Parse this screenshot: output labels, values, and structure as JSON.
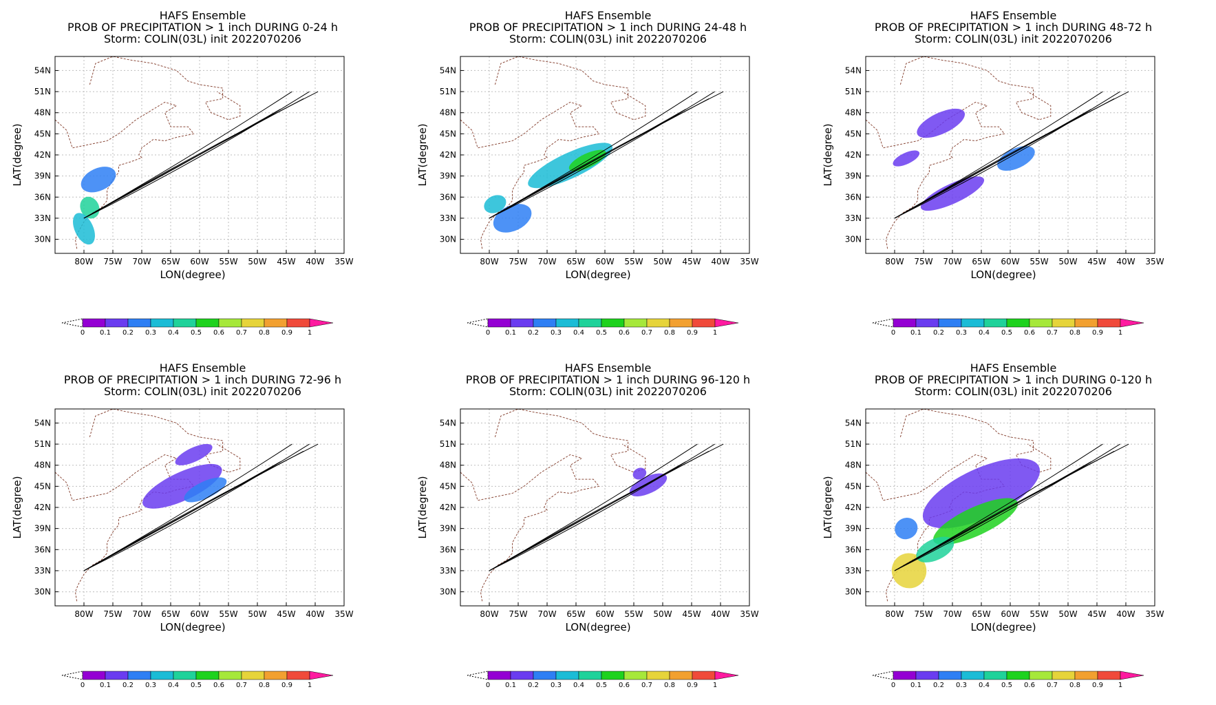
{
  "figure": {
    "lat_ticks": [
      "54N",
      "51N",
      "48N",
      "45N",
      "42N",
      "39N",
      "36N",
      "33N",
      "30N"
    ],
    "lon_ticks": [
      "80W",
      "75W",
      "70W",
      "65W",
      "60W",
      "55W",
      "50W",
      "45W",
      "40W",
      "35W"
    ],
    "ylabel": "LAT(degree)",
    "xlabel": "LON(degree)",
    "colorbar_ticks": [
      "0",
      "0.1",
      "0.2",
      "0.3",
      "0.4",
      "0.5",
      "0.6",
      "0.7",
      "0.8",
      "0.9",
      "1"
    ],
    "colorbar_colors": [
      "#9400d3",
      "#6a3cf0",
      "#2e7ff4",
      "#1bbcd6",
      "#1fd29a",
      "#1ed21e",
      "#a6e83a",
      "#e6d43a",
      "#f2a030",
      "#f04a3a",
      "#ff1aa0"
    ],
    "panels": [
      {
        "line1": "HAFS Ensemble",
        "line2": "PROB OF PRECIPITATION > 1 inch DURING  0-24 h",
        "line3": "Storm: COLIN(03L) init 2022070206"
      },
      {
        "line1": "HAFS Ensemble",
        "line2": "PROB OF PRECIPITATION > 1 inch DURING 24-48 h",
        "line3": "Storm: COLIN(03L) init 2022070206"
      },
      {
        "line1": "HAFS Ensemble",
        "line2": "PROB OF PRECIPITATION > 1 inch DURING 48-72 h",
        "line3": "Storm: COLIN(03L) init 2022070206"
      },
      {
        "line1": "HAFS Ensemble",
        "line2": "PROB OF PRECIPITATION > 1 inch DURING 72-96 h",
        "line3": "Storm: COLIN(03L) init 2022070206"
      },
      {
        "line1": "HAFS Ensemble",
        "line2": "PROB OF PRECIPITATION > 1 inch DURING 96-120 h",
        "line3": "Storm: COLIN(03L) init 2022070206"
      },
      {
        "line1": "HAFS Ensemble",
        "line2": "PROB OF PRECIPITATION > 1 inch DURING 0-120 h",
        "line3": "Storm: COLIN(03L) init 2022070206"
      }
    ]
  },
  "map_data": {
    "lon_range": [
      -85,
      -35
    ],
    "lat_range": [
      28,
      56
    ],
    "track_start": [
      -80,
      33
    ],
    "track_ends": [
      [
        -41,
        51
      ],
      [
        -44,
        51
      ],
      [
        -46,
        48.5
      ],
      [
        -42,
        50
      ],
      [
        -39.5,
        51
      ]
    ],
    "panel_blobs": [
      [
        {
          "lon": -77.5,
          "lat": 38.5,
          "rx": 3.2,
          "ry": 1.6,
          "prob": 0.25
        },
        {
          "lon": -79.0,
          "lat": 34.5,
          "rx": 1.6,
          "ry": 1.6,
          "prob": 0.45
        },
        {
          "lon": -80.0,
          "lat": 31.5,
          "rx": 1.6,
          "ry": 2.4,
          "prob": 0.3
        }
      ],
      [
        {
          "lon": -66.0,
          "lat": 40.5,
          "rx": 8.0,
          "ry": 1.8,
          "prob": 0.3
        },
        {
          "lon": -63.0,
          "lat": 41.2,
          "rx": 3.5,
          "ry": 1.0,
          "prob": 0.55
        },
        {
          "lon": -79.0,
          "lat": 35.0,
          "rx": 2.0,
          "ry": 1.2,
          "prob": 0.3
        },
        {
          "lon": -76.0,
          "lat": 33.0,
          "rx": 3.5,
          "ry": 1.8,
          "prob": 0.2
        }
      ],
      [
        {
          "lon": -72.0,
          "lat": 46.5,
          "rx": 4.5,
          "ry": 1.5,
          "prob": 0.15
        },
        {
          "lon": -59.0,
          "lat": 41.5,
          "rx": 3.5,
          "ry": 1.4,
          "prob": 0.2
        },
        {
          "lon": -70.0,
          "lat": 36.5,
          "rx": 6.0,
          "ry": 1.4,
          "prob": 0.15
        },
        {
          "lon": -78.0,
          "lat": 41.5,
          "rx": 2.5,
          "ry": 0.8,
          "prob": 0.1
        }
      ],
      [
        {
          "lon": -63.0,
          "lat": 45.0,
          "rx": 7.5,
          "ry": 2.0,
          "prob": 0.15
        },
        {
          "lon": -61.0,
          "lat": 49.5,
          "rx": 3.5,
          "ry": 1.0,
          "prob": 0.12
        },
        {
          "lon": -59.0,
          "lat": 44.5,
          "rx": 4.0,
          "ry": 1.2,
          "prob": 0.25
        }
      ],
      [
        {
          "lon": -52.5,
          "lat": 45.2,
          "rx": 3.5,
          "ry": 1.2,
          "prob": 0.12
        },
        {
          "lon": -54.0,
          "lat": 46.8,
          "rx": 1.2,
          "ry": 0.8,
          "prob": 0.1
        }
      ],
      [
        {
          "lon": -65.0,
          "lat": 44.0,
          "rx": 11.0,
          "ry": 3.5,
          "prob": 0.15
        },
        {
          "lon": -66.0,
          "lat": 40.0,
          "rx": 8.0,
          "ry": 2.0,
          "prob": 0.5
        },
        {
          "lon": -77.5,
          "lat": 33.0,
          "rx": 3.0,
          "ry": 2.5,
          "prob": 0.75
        },
        {
          "lon": -73.0,
          "lat": 36.0,
          "rx": 3.5,
          "ry": 1.5,
          "prob": 0.4
        },
        {
          "lon": -78.0,
          "lat": 39.0,
          "rx": 2.0,
          "ry": 1.5,
          "prob": 0.25
        }
      ]
    ]
  }
}
